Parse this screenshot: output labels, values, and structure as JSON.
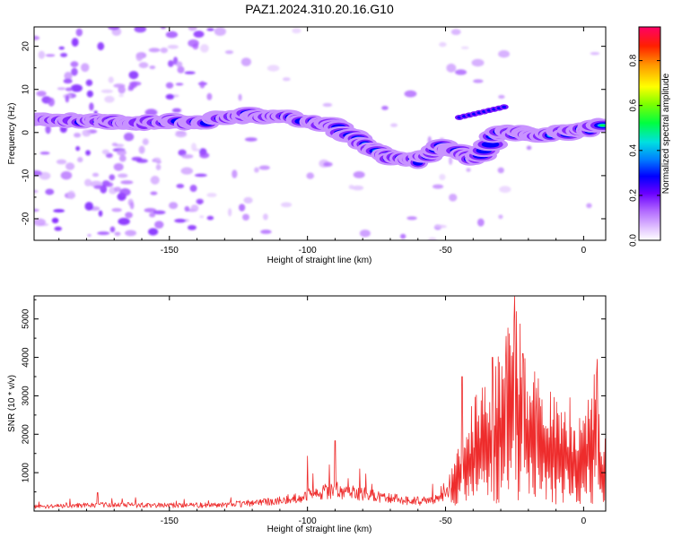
{
  "title": "PAZ1.2024.310.20.16.G10",
  "chart_data": [
    {
      "type": "heatmap",
      "xlabel": "Height of straight line (km)",
      "ylabel": "Frequency (Hz)",
      "xlim": [
        -199,
        8
      ],
      "ylim": [
        -25,
        24.5
      ],
      "xticks": [
        -150,
        -100,
        -50,
        0
      ],
      "yticks": [
        -20,
        -10,
        0,
        10,
        20
      ],
      "colorbar": {
        "label": "Normalized spectral amplitude",
        "range": [
          0,
          0.95
        ],
        "ticks": [
          0,
          0.2,
          0.4,
          0.6,
          0.8
        ]
      },
      "ridge": [
        [
          -198,
          2.8
        ],
        [
          -185,
          3.0
        ],
        [
          -175,
          2.6
        ],
        [
          -165,
          2.2
        ],
        [
          -150,
          2.6
        ],
        [
          -140,
          2.2
        ],
        [
          -130,
          3.6
        ],
        [
          -120,
          4.0
        ],
        [
          -110,
          3.6
        ],
        [
          -100,
          2.6
        ],
        [
          -90,
          1.6
        ],
        [
          -80,
          -2.8
        ],
        [
          -70,
          -5.6
        ],
        [
          -60,
          -6.6
        ],
        [
          -52,
          -3.4
        ],
        [
          -45,
          -4.2
        ],
        [
          -40,
          -6.8
        ],
        [
          -30,
          0.6
        ],
        [
          -20,
          -0.6
        ],
        [
          -10,
          -0.2
        ],
        [
          0,
          0.4
        ],
        [
          8,
          1.8
        ]
      ]
    },
    {
      "type": "line",
      "xlabel": "Height of straight line (km)",
      "ylabel": "SNR (10 * v/v)",
      "xlim": [
        -199,
        8
      ],
      "ylim": [
        0,
        5600
      ],
      "xticks": [
        -150,
        -100,
        -50,
        0
      ],
      "yticks": [
        1000,
        2000,
        3000,
        4000,
        5000
      ],
      "series": [
        {
          "color": "#ee2c2c",
          "envelope": [
            [
              -199,
              180
            ],
            [
              -175,
              260
            ],
            [
              -150,
              240
            ],
            [
              -130,
              260
            ],
            [
              -120,
              330
            ],
            [
              -110,
              420
            ],
            [
              -100,
              650
            ],
            [
              -90,
              860
            ],
            [
              -80,
              700
            ],
            [
              -70,
              520
            ],
            [
              -60,
              420
            ],
            [
              -52,
              500
            ],
            [
              -48,
              1150
            ],
            [
              -42,
              2450
            ],
            [
              -38,
              3300
            ],
            [
              -33,
              3700
            ],
            [
              -30,
              4250
            ],
            [
              -28,
              4800
            ],
            [
              -24,
              5400
            ],
            [
              -20,
              3900
            ],
            [
              -15,
              3300
            ],
            [
              -10,
              3000
            ],
            [
              -5,
              2800
            ],
            [
              0,
              2600
            ],
            [
              3,
              3400
            ],
            [
              5,
              3800
            ],
            [
              6,
              2600
            ],
            [
              7,
              1500
            ],
            [
              8,
              2200
            ]
          ],
          "peaks": [
            [
              -176,
              480
            ],
            [
              -100,
              1430
            ],
            [
              -90,
              1830
            ],
            [
              -81,
              1100
            ],
            [
              -44,
              3500
            ],
            [
              -33,
              4000
            ],
            [
              -28,
              4550
            ],
            [
              -25,
              5580
            ],
            [
              -22,
              4100
            ],
            [
              -17,
              3200
            ],
            [
              -12,
              3100
            ],
            [
              -5,
              2950
            ],
            [
              5,
              3950
            ],
            [
              8,
              2200
            ]
          ]
        }
      ]
    }
  ]
}
